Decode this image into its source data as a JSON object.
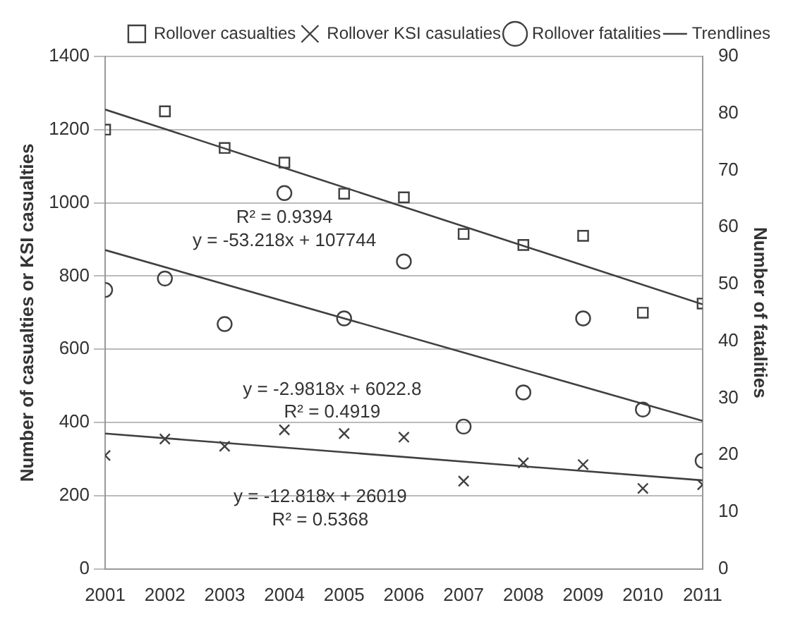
{
  "chart_data": {
    "type": "scatter",
    "ylabel": "Number of casualties or KSI casualties",
    "y2label": "Number of fatalities",
    "x": [
      2001,
      2002,
      2003,
      2004,
      2005,
      2006,
      2007,
      2008,
      2009,
      2010,
      2011
    ],
    "xlim": [
      2001,
      2011
    ],
    "xticks": [
      2001,
      2002,
      2003,
      2004,
      2005,
      2006,
      2007,
      2008,
      2009,
      2010,
      2011
    ],
    "ylim": [
      0,
      1400
    ],
    "yticks": [
      0,
      200,
      400,
      600,
      800,
      1000,
      1200,
      1400
    ],
    "y2lim": [
      0,
      90
    ],
    "y2ticks": [
      0,
      10,
      20,
      30,
      40,
      50,
      60,
      70,
      80,
      90
    ],
    "grid": "y",
    "legend": "top right",
    "series": [
      {
        "name": "Rollover casualties",
        "color": "#404040",
        "marker": "square",
        "values": [
          1200,
          1250,
          1150,
          1110,
          1025,
          1015,
          915,
          885,
          910,
          700,
          725
        ]
      },
      {
        "name": "Rollover KSI casulaties",
        "color": "#404040",
        "marker": "cross",
        "values": [
          310,
          355,
          335,
          380,
          370,
          360,
          240,
          290,
          285,
          220,
          230
        ]
      },
      {
        "name": "Rollover fatalities",
        "color": "#404040",
        "marker": "circle",
        "axis": "y2",
        "values": [
          49,
          51,
          43,
          66,
          44,
          54,
          25,
          31,
          44,
          28,
          19
        ]
      },
      {
        "name": "Trendlines",
        "type": "line",
        "color": "#404040",
        "marker": "none",
        "values": [
          1255,
          null,
          null,
          null,
          null,
          null,
          null,
          null,
          null,
          null,
          723
        ]
      },
      {
        "type": "line",
        "color": "#404040",
        "marker": "none",
        "values": [
          370,
          null,
          null,
          null,
          null,
          null,
          null,
          null,
          null,
          null,
          242
        ]
      },
      {
        "type": "line",
        "color": "#404040",
        "marker": "none",
        "axis": "y2",
        "values": [
          56,
          null,
          null,
          null,
          null,
          null,
          null,
          null,
          null,
          null,
          26
        ]
      }
    ],
    "annotations": [
      "y = -53.218x + 107744",
      "R² = 0.9394",
      "y = -2.9818x + 6022.8",
      "R² = 0.4919",
      "y = -12.818x + 26019",
      "R² = 0.5368"
    ]
  }
}
